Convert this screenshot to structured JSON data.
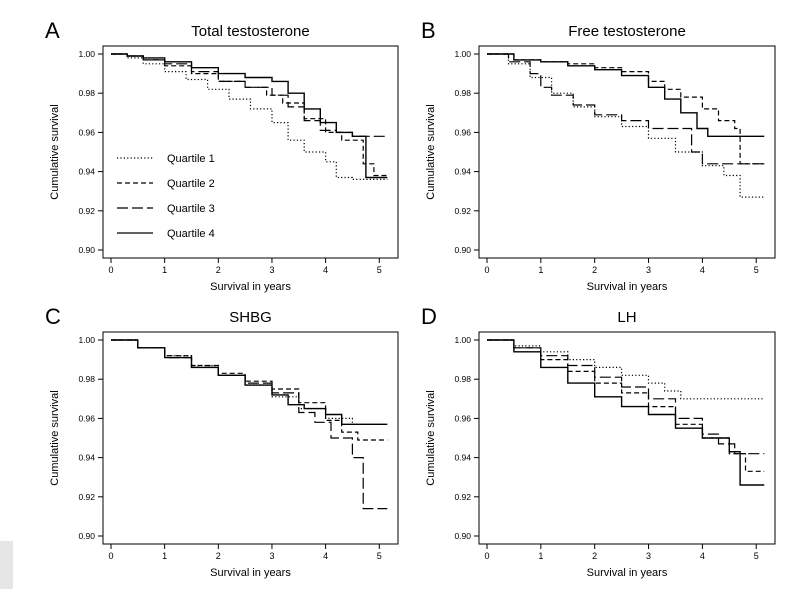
{
  "figure": {
    "panel_colors": {
      "stroke": "#000000",
      "background": "#ffffff",
      "side_bar": "#e6e6e6"
    }
  },
  "chart_data": [
    {
      "type": "line",
      "panel_letter": "A",
      "title": "Total testosterone",
      "xlabel": "Survival in years",
      "ylabel": "Cumulative survival",
      "xlim": [
        0,
        5.2
      ],
      "ylim": [
        0.9,
        1.0
      ],
      "xticks": [
        0,
        1,
        2,
        3,
        4,
        5
      ],
      "yticks": [
        0.9,
        0.92,
        0.94,
        0.96,
        0.98,
        1.0
      ],
      "ytick_labels": [
        "0.90",
        "0.92",
        "0.94",
        "0.96",
        "0.98",
        "1.00"
      ],
      "legend": {
        "position": "left-middle",
        "entries": [
          "Quartile 1",
          "Quartile 2",
          "Quartile 3",
          "Quartile 4"
        ]
      },
      "series": [
        {
          "name": "Quartile 1",
          "style": "dotted",
          "x": [
            0,
            0.3,
            0.6,
            1.0,
            1.4,
            1.8,
            2.2,
            2.6,
            3.0,
            3.3,
            3.6,
            4.0,
            4.2,
            4.5,
            5.15
          ],
          "y": [
            1.0,
            0.998,
            0.995,
            0.991,
            0.987,
            0.982,
            0.977,
            0.972,
            0.965,
            0.956,
            0.95,
            0.945,
            0.937,
            0.936,
            0.936
          ]
        },
        {
          "name": "Quartile 2",
          "style": "dashed",
          "x": [
            0,
            0.3,
            0.6,
            1.0,
            1.5,
            2.0,
            2.5,
            2.9,
            3.2,
            3.6,
            4.0,
            4.3,
            4.7,
            4.9,
            5.15
          ],
          "y": [
            1.0,
            0.999,
            0.997,
            0.994,
            0.99,
            0.986,
            0.983,
            0.979,
            0.975,
            0.967,
            0.96,
            0.956,
            0.944,
            0.938,
            0.938
          ]
        },
        {
          "name": "Quartile 3",
          "style": "longdash",
          "x": [
            0,
            0.3,
            0.6,
            1.0,
            1.5,
            2.0,
            2.5,
            3.0,
            3.3,
            3.6,
            3.9,
            4.2,
            4.5,
            4.8,
            5.15
          ],
          "y": [
            1.0,
            0.999,
            0.997,
            0.995,
            0.991,
            0.986,
            0.983,
            0.979,
            0.973,
            0.966,
            0.961,
            0.96,
            0.958,
            0.958,
            0.958
          ]
        },
        {
          "name": "Quartile 4",
          "style": "solid",
          "x": [
            0,
            0.3,
            0.6,
            1.0,
            1.5,
            2.0,
            2.5,
            3.0,
            3.3,
            3.6,
            3.9,
            4.2,
            4.5,
            4.7,
            4.75,
            5.15
          ],
          "y": [
            1.0,
            0.999,
            0.998,
            0.996,
            0.993,
            0.99,
            0.988,
            0.986,
            0.98,
            0.972,
            0.965,
            0.96,
            0.958,
            0.958,
            0.937,
            0.937
          ]
        }
      ]
    },
    {
      "type": "line",
      "panel_letter": "B",
      "title": "Free testosterone",
      "xlabel": "Survival in years",
      "ylabel": "Cumulative survival",
      "xlim": [
        0,
        5.2
      ],
      "ylim": [
        0.9,
        1.0
      ],
      "xticks": [
        0,
        1,
        2,
        3,
        4,
        5
      ],
      "yticks": [
        0.9,
        0.92,
        0.94,
        0.96,
        0.98,
        1.0
      ],
      "ytick_labels": [
        "0.90",
        "0.92",
        "0.94",
        "0.96",
        "0.98",
        "1.00"
      ],
      "legend": null,
      "series": [
        {
          "name": "Quartile 1",
          "style": "dotted",
          "x": [
            0,
            0.4,
            0.8,
            1.2,
            1.6,
            2.0,
            2.5,
            3.0,
            3.5,
            4.0,
            4.4,
            4.7,
            5.15
          ],
          "y": [
            1.0,
            0.995,
            0.988,
            0.98,
            0.973,
            0.968,
            0.963,
            0.957,
            0.95,
            0.943,
            0.938,
            0.927,
            0.927
          ]
        },
        {
          "name": "Quartile 2",
          "style": "dashed",
          "x": [
            0,
            0.5,
            1.0,
            1.5,
            2.0,
            2.5,
            3.0,
            3.3,
            3.6,
            4.0,
            4.3,
            4.6,
            4.7,
            5.15
          ],
          "y": [
            1.0,
            0.997,
            0.996,
            0.995,
            0.993,
            0.991,
            0.986,
            0.982,
            0.978,
            0.972,
            0.966,
            0.962,
            0.944,
            0.944
          ]
        },
        {
          "name": "Quartile 3",
          "style": "longdash",
          "x": [
            0,
            0.4,
            0.8,
            1.0,
            1.2,
            1.6,
            2.0,
            2.5,
            3.0,
            3.5,
            3.8,
            4.0,
            4.5,
            5.15
          ],
          "y": [
            1.0,
            0.996,
            0.99,
            0.983,
            0.979,
            0.974,
            0.969,
            0.966,
            0.962,
            0.962,
            0.95,
            0.944,
            0.944,
            0.944
          ]
        },
        {
          "name": "Quartile 4",
          "style": "solid",
          "x": [
            0,
            0.5,
            1.0,
            1.5,
            2.0,
            2.5,
            3.0,
            3.3,
            3.6,
            3.9,
            4.1,
            4.4,
            5.15
          ],
          "y": [
            1.0,
            0.997,
            0.996,
            0.994,
            0.992,
            0.989,
            0.983,
            0.977,
            0.97,
            0.962,
            0.958,
            0.958,
            0.958
          ]
        }
      ]
    },
    {
      "type": "line",
      "panel_letter": "C",
      "title": "SHBG",
      "xlabel": "Survival in years",
      "ylabel": "Cumulative survival",
      "xlim": [
        0,
        5.2
      ],
      "ylim": [
        0.9,
        1.0
      ],
      "xticks": [
        0,
        1,
        2,
        3,
        4,
        5
      ],
      "yticks": [
        0.9,
        0.92,
        0.94,
        0.96,
        0.98,
        1.0
      ],
      "ytick_labels": [
        "0.90",
        "0.92",
        "0.94",
        "0.96",
        "0.98",
        "1.00"
      ],
      "legend": null,
      "series": [
        {
          "name": "Quartile 1",
          "style": "dotted",
          "x": [
            0,
            0.5,
            1.0,
            1.5,
            2.0,
            2.5,
            3.0,
            3.5,
            4.0,
            4.5,
            5.15
          ],
          "y": [
            1.0,
            0.996,
            0.992,
            0.987,
            0.982,
            0.977,
            0.971,
            0.965,
            0.96,
            0.957,
            0.957
          ]
        },
        {
          "name": "Quartile 2",
          "style": "dashed",
          "x": [
            0,
            0.5,
            1.0,
            1.5,
            2.0,
            2.5,
            3.0,
            3.5,
            4.0,
            4.3,
            4.6,
            5.15
          ],
          "y": [
            1.0,
            0.996,
            0.992,
            0.987,
            0.983,
            0.979,
            0.975,
            0.968,
            0.959,
            0.953,
            0.949,
            0.949
          ]
        },
        {
          "name": "Quartile 3",
          "style": "longdash",
          "x": [
            0,
            0.5,
            1.0,
            1.5,
            2.0,
            2.5,
            3.0,
            3.5,
            3.8,
            4.1,
            4.5,
            4.7,
            5.15
          ],
          "y": [
            1.0,
            0.996,
            0.991,
            0.986,
            0.982,
            0.978,
            0.973,
            0.963,
            0.958,
            0.95,
            0.94,
            0.914,
            0.914
          ]
        },
        {
          "name": "Quartile 4",
          "style": "solid",
          "x": [
            0,
            0.5,
            1.0,
            1.5,
            2.0,
            2.5,
            3.0,
            3.3,
            3.6,
            4.0,
            4.3,
            5.15
          ],
          "y": [
            1.0,
            0.996,
            0.991,
            0.986,
            0.982,
            0.977,
            0.972,
            0.967,
            0.965,
            0.962,
            0.957,
            0.957
          ]
        }
      ]
    },
    {
      "type": "line",
      "panel_letter": "D",
      "title": "LH",
      "xlabel": "Survival in years",
      "ylabel": "Cumulative survival",
      "xlim": [
        0,
        5.2
      ],
      "ylim": [
        0.9,
        1.0
      ],
      "xticks": [
        0,
        1,
        2,
        3,
        4,
        5
      ],
      "yticks": [
        0.9,
        0.92,
        0.94,
        0.96,
        0.98,
        1.0
      ],
      "ytick_labels": [
        "0.90",
        "0.92",
        "0.94",
        "0.96",
        "0.98",
        "1.00"
      ],
      "legend": null,
      "series": [
        {
          "name": "Quartile 1",
          "style": "dotted",
          "x": [
            0,
            0.5,
            1.0,
            1.5,
            2.0,
            2.5,
            3.0,
            3.3,
            3.6,
            5.15
          ],
          "y": [
            1.0,
            0.997,
            0.994,
            0.99,
            0.986,
            0.982,
            0.978,
            0.974,
            0.97,
            0.97
          ]
        },
        {
          "name": "Quartile 2",
          "style": "dashed",
          "x": [
            0,
            0.5,
            1.0,
            1.5,
            2.0,
            2.5,
            3.0,
            3.5,
            4.0,
            4.5,
            4.8,
            5.15
          ],
          "y": [
            1.0,
            0.996,
            0.99,
            0.984,
            0.978,
            0.973,
            0.966,
            0.957,
            0.95,
            0.942,
            0.933,
            0.933
          ]
        },
        {
          "name": "Quartile 3",
          "style": "longdash",
          "x": [
            0,
            0.5,
            1.0,
            1.5,
            2.0,
            2.5,
            3.0,
            3.5,
            4.0,
            4.3,
            4.6,
            5.15
          ],
          "y": [
            1.0,
            0.996,
            0.992,
            0.987,
            0.981,
            0.976,
            0.97,
            0.96,
            0.952,
            0.947,
            0.942,
            0.942
          ]
        },
        {
          "name": "Quartile 4",
          "style": "solid",
          "x": [
            0,
            0.5,
            1.0,
            1.5,
            2.0,
            2.5,
            3.0,
            3.5,
            4.0,
            4.5,
            4.7,
            5.15
          ],
          "y": [
            1.0,
            0.994,
            0.986,
            0.978,
            0.971,
            0.966,
            0.962,
            0.955,
            0.95,
            0.943,
            0.926,
            0.926
          ]
        }
      ]
    }
  ]
}
